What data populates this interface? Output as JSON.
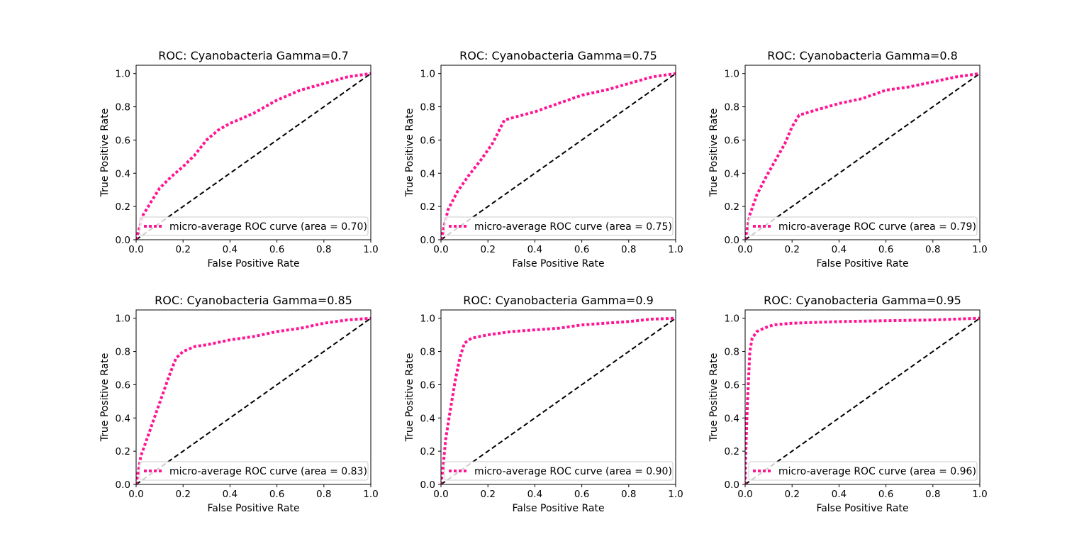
{
  "chart_data": [
    {
      "type": "line",
      "title": "ROC: Cyanobacteria Gamma=0.7",
      "xlabel": "False Positive Rate",
      "ylabel": "True Positive Rate",
      "xlim": [
        0.0,
        1.0
      ],
      "ylim": [
        0.0,
        1.05
      ],
      "xticks": [
        "0.0",
        "0.2",
        "0.4",
        "0.6",
        "0.8",
        "1.0"
      ],
      "yticks": [
        "0.0",
        "0.2",
        "0.4",
        "0.6",
        "0.8",
        "1.0"
      ],
      "grid": false,
      "legend_position": "lower right",
      "series": [
        {
          "name": "micro-average ROC curve (area = 0.70)",
          "color": "#ff1493",
          "style": "dotted",
          "x": [
            0.0,
            0.03,
            0.06,
            0.1,
            0.15,
            0.2,
            0.25,
            0.3,
            0.35,
            0.4,
            0.45,
            0.5,
            0.6,
            0.7,
            0.8,
            0.9,
            1.0
          ],
          "y": [
            0.0,
            0.15,
            0.22,
            0.31,
            0.38,
            0.44,
            0.51,
            0.6,
            0.66,
            0.7,
            0.73,
            0.76,
            0.84,
            0.9,
            0.94,
            0.98,
            1.0
          ]
        },
        {
          "name": "",
          "color": "#000000",
          "style": "dashed",
          "x": [
            0.0,
            1.0
          ],
          "y": [
            0.0,
            1.0
          ]
        }
      ]
    },
    {
      "type": "line",
      "title": "ROC: Cyanobacteria Gamma=0.75",
      "xlabel": "False Positive Rate",
      "ylabel": "True Positive Rate",
      "xlim": [
        0.0,
        1.0
      ],
      "ylim": [
        0.0,
        1.05
      ],
      "xticks": [
        "0.0",
        "0.2",
        "0.4",
        "0.6",
        "0.8",
        "1.0"
      ],
      "yticks": [
        "0.0",
        "0.2",
        "0.4",
        "0.6",
        "0.8",
        "1.0"
      ],
      "grid": false,
      "legend_position": "lower right",
      "series": [
        {
          "name": "micro-average ROC curve (area = 0.75)",
          "color": "#ff1493",
          "style": "dotted",
          "x": [
            0.0,
            0.03,
            0.07,
            0.12,
            0.17,
            0.22,
            0.27,
            0.32,
            0.4,
            0.5,
            0.6,
            0.7,
            0.8,
            0.9,
            1.0
          ],
          "y": [
            0.0,
            0.18,
            0.29,
            0.39,
            0.48,
            0.58,
            0.72,
            0.74,
            0.77,
            0.82,
            0.87,
            0.9,
            0.94,
            0.98,
            1.0
          ]
        },
        {
          "name": "",
          "color": "#000000",
          "style": "dashed",
          "x": [
            0.0,
            1.0
          ],
          "y": [
            0.0,
            1.0
          ]
        }
      ]
    },
    {
      "type": "line",
      "title": "ROC: Cyanobacteria Gamma=0.8",
      "xlabel": "False Positive Rate",
      "ylabel": "True Positive Rate",
      "xlim": [
        0.0,
        1.0
      ],
      "ylim": [
        0.0,
        1.05
      ],
      "xticks": [
        "0.0",
        "0.2",
        "0.4",
        "0.6",
        "0.8",
        "1.0"
      ],
      "yticks": [
        "0.0",
        "0.2",
        "0.4",
        "0.6",
        "0.8",
        "1.0"
      ],
      "grid": false,
      "legend_position": "lower right",
      "series": [
        {
          "name": "micro-average ROC curve (area = 0.79)",
          "color": "#ff1493",
          "style": "dotted",
          "x": [
            0.0,
            0.02,
            0.05,
            0.09,
            0.13,
            0.17,
            0.2,
            0.23,
            0.3,
            0.4,
            0.5,
            0.6,
            0.7,
            0.8,
            0.9,
            1.0
          ],
          "y": [
            0.0,
            0.15,
            0.27,
            0.38,
            0.48,
            0.58,
            0.68,
            0.75,
            0.78,
            0.82,
            0.85,
            0.9,
            0.92,
            0.95,
            0.98,
            1.0
          ]
        },
        {
          "name": "",
          "color": "#000000",
          "style": "dashed",
          "x": [
            0.0,
            1.0
          ],
          "y": [
            0.0,
            1.0
          ]
        }
      ]
    },
    {
      "type": "line",
      "title": "ROC: Cyanobacteria Gamma=0.85",
      "xlabel": "False Positive Rate",
      "ylabel": "True Positive Rate",
      "xlim": [
        0.0,
        1.0
      ],
      "ylim": [
        0.0,
        1.05
      ],
      "xticks": [
        "0.0",
        "0.2",
        "0.4",
        "0.6",
        "0.8",
        "1.0"
      ],
      "yticks": [
        "0.0",
        "0.2",
        "0.4",
        "0.6",
        "0.8",
        "1.0"
      ],
      "grid": false,
      "legend_position": "lower right",
      "series": [
        {
          "name": "micro-average ROC curve (area = 0.83)",
          "color": "#ff1493",
          "style": "dotted",
          "x": [
            0.0,
            0.02,
            0.05,
            0.08,
            0.11,
            0.14,
            0.17,
            0.2,
            0.25,
            0.3,
            0.4,
            0.5,
            0.6,
            0.7,
            0.8,
            0.9,
            1.0
          ],
          "y": [
            0.0,
            0.17,
            0.29,
            0.41,
            0.53,
            0.65,
            0.76,
            0.8,
            0.83,
            0.84,
            0.87,
            0.89,
            0.92,
            0.94,
            0.97,
            0.99,
            1.0
          ]
        },
        {
          "name": "",
          "color": "#000000",
          "style": "dashed",
          "x": [
            0.0,
            1.0
          ],
          "y": [
            0.0,
            1.0
          ]
        }
      ]
    },
    {
      "type": "line",
      "title": "ROC: Cyanobacteria Gamma=0.9",
      "xlabel": "False Positive Rate",
      "ylabel": "True Positive Rate",
      "xlim": [
        0.0,
        1.0
      ],
      "ylim": [
        0.0,
        1.05
      ],
      "xticks": [
        "0.0",
        "0.2",
        "0.4",
        "0.6",
        "0.8",
        "1.0"
      ],
      "yticks": [
        "0.0",
        "0.2",
        "0.4",
        "0.6",
        "0.8",
        "1.0"
      ],
      "grid": false,
      "legend_position": "lower right",
      "series": [
        {
          "name": "micro-average ROC curve (area = 0.90)",
          "color": "#ff1493",
          "style": "dotted",
          "x": [
            0.0,
            0.01,
            0.02,
            0.04,
            0.06,
            0.08,
            0.1,
            0.13,
            0.2,
            0.3,
            0.4,
            0.5,
            0.6,
            0.7,
            0.8,
            0.9,
            1.0
          ],
          "y": [
            0.0,
            0.12,
            0.27,
            0.45,
            0.62,
            0.76,
            0.85,
            0.88,
            0.9,
            0.92,
            0.93,
            0.94,
            0.96,
            0.97,
            0.98,
            0.995,
            1.0
          ]
        },
        {
          "name": "",
          "color": "#000000",
          "style": "dashed",
          "x": [
            0.0,
            1.0
          ],
          "y": [
            0.0,
            1.0
          ]
        }
      ]
    },
    {
      "type": "line",
      "title": "ROC: Cyanobacteria Gamma=0.95",
      "xlabel": "False Positive Rate",
      "ylabel": "True Positive Rate",
      "xlim": [
        0.0,
        1.0
      ],
      "ylim": [
        0.0,
        1.05
      ],
      "xticks": [
        "0.0",
        "0.2",
        "0.4",
        "0.6",
        "0.8",
        "1.0"
      ],
      "yticks": [
        "0.0",
        "0.2",
        "0.4",
        "0.6",
        "0.8",
        "1.0"
      ],
      "grid": false,
      "legend_position": "lower right",
      "series": [
        {
          "name": "micro-average ROC curve (area = 0.96)",
          "color": "#ff1493",
          "style": "dotted",
          "x": [
            0.0,
            0.002,
            0.005,
            0.01,
            0.015,
            0.02,
            0.03,
            0.05,
            0.08,
            0.12,
            0.2,
            0.3,
            0.4,
            0.6,
            0.8,
            0.9,
            1.0
          ],
          "y": [
            0.0,
            0.15,
            0.3,
            0.5,
            0.65,
            0.8,
            0.88,
            0.92,
            0.94,
            0.96,
            0.97,
            0.975,
            0.98,
            0.985,
            0.99,
            0.995,
            1.0
          ]
        },
        {
          "name": "",
          "color": "#000000",
          "style": "dashed",
          "x": [
            0.0,
            1.0
          ],
          "y": [
            0.0,
            1.0
          ]
        }
      ]
    }
  ]
}
